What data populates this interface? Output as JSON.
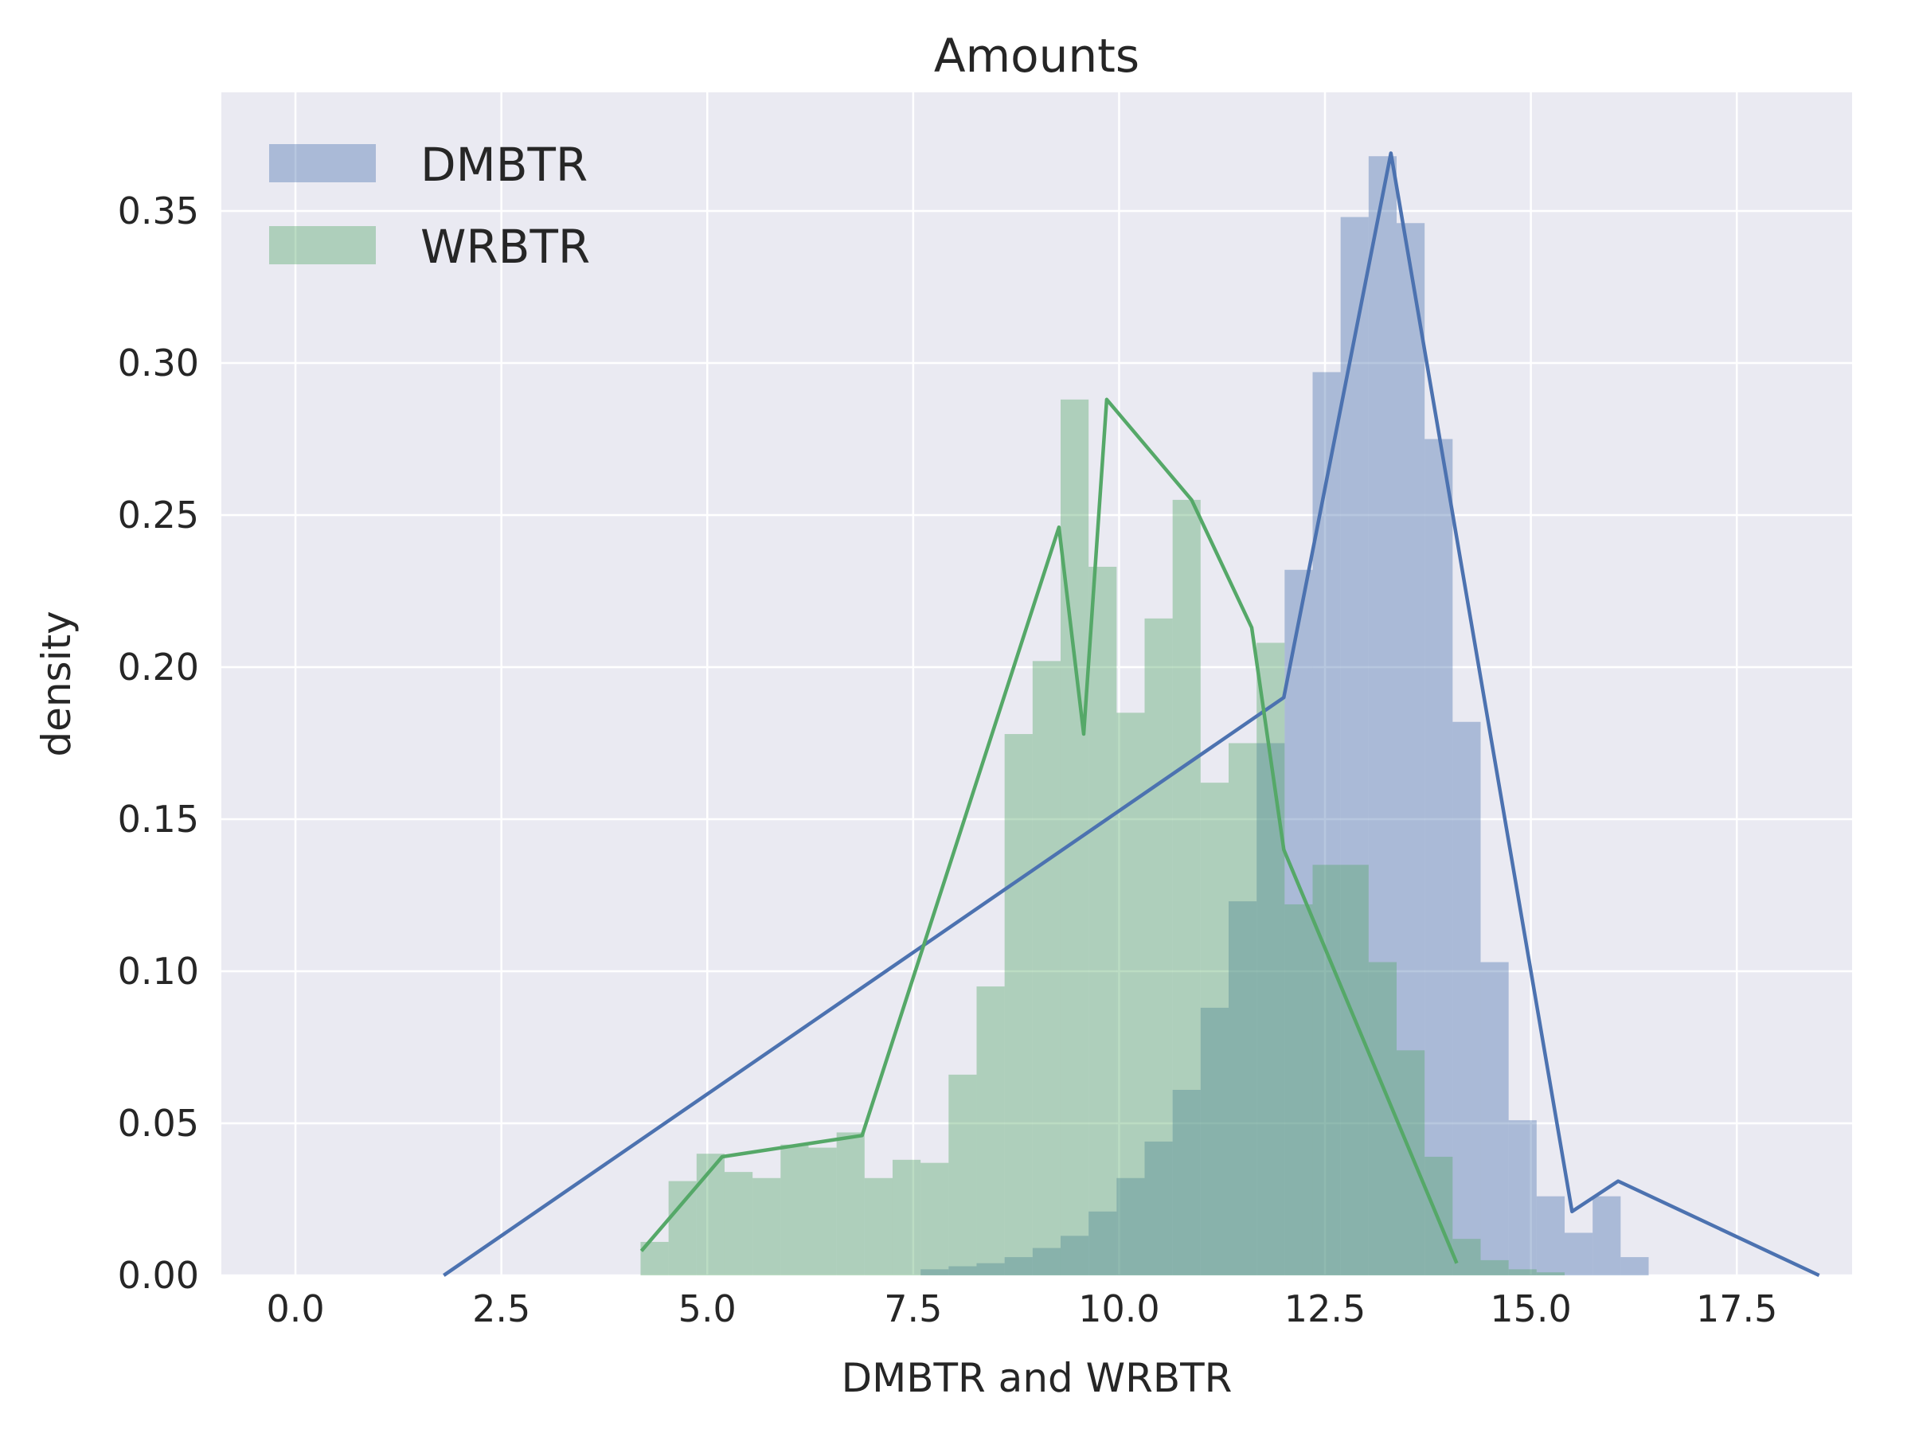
{
  "chart_data": {
    "type": "histogram",
    "title": "Amounts",
    "xlabel": "DMBTR and WRBTR",
    "ylabel": "density",
    "xlim": [
      -0.9,
      18.9
    ],
    "ylim": [
      0,
      0.389
    ],
    "xticks": [
      0.0,
      2.5,
      5.0,
      7.5,
      10.0,
      12.5,
      15.0,
      17.5
    ],
    "xtick_labels": [
      "0.0",
      "2.5",
      "5.0",
      "7.5",
      "10.0",
      "12.5",
      "15.0",
      "17.5"
    ],
    "yticks": [
      0.0,
      0.05,
      0.1,
      0.15,
      0.2,
      0.25,
      0.3,
      0.35
    ],
    "ytick_labels": [
      "0.00",
      "0.05",
      "0.10",
      "0.15",
      "0.20",
      "0.25",
      "0.30",
      "0.35"
    ],
    "grid": true,
    "legend_position": "top-left",
    "bin_edges": [
      4.19,
      4.53,
      4.87,
      5.21,
      5.55,
      5.89,
      6.23,
      6.57,
      6.91,
      7.25,
      7.59,
      7.93,
      8.27,
      8.61,
      8.95,
      9.29,
      9.63,
      9.97,
      10.31,
      10.65,
      10.99,
      11.33,
      11.67,
      12.01,
      12.35,
      12.69,
      13.03,
      13.37,
      13.71,
      14.05,
      14.39,
      14.73,
      15.07,
      15.41,
      15.75,
      16.09,
      16.43
    ],
    "series": [
      {
        "name": "DMBTR",
        "color": "#4c72b0",
        "hist_values": [
          0,
          0,
          0,
          0,
          0,
          0,
          0,
          0,
          0,
          0,
          0.002,
          0.003,
          0.004,
          0.006,
          0.009,
          0.013,
          0.021,
          0.032,
          0.044,
          0.061,
          0.088,
          0.123,
          0.175,
          0.232,
          0.297,
          0.348,
          0.368,
          0.346,
          0.275,
          0.182,
          0.103,
          0.051,
          0.026,
          0.014,
          0.026,
          0.006
        ],
        "kde_x": [
          13.3,
          12.0,
          15.5,
          1.8,
          16.06,
          18.5
        ],
        "kde_y": [
          0.369,
          0.19,
          0.021,
          0.0,
          0.031,
          0.0
        ]
      },
      {
        "name": "WRBTR",
        "color": "#55a868",
        "hist_values": [
          0.011,
          0.031,
          0.04,
          0.034,
          0.032,
          0.043,
          0.042,
          0.047,
          0.032,
          0.038,
          0.037,
          0.066,
          0.095,
          0.178,
          0.202,
          0.288,
          0.233,
          0.185,
          0.216,
          0.255,
          0.162,
          0.175,
          0.208,
          0.122,
          0.135,
          0.135,
          0.103,
          0.074,
          0.039,
          0.012,
          0.005,
          0.002,
          0.001,
          0,
          0,
          0
        ],
        "kde_x": [
          9.85,
          9.27,
          9.57,
          10.88,
          11.61,
          5.18,
          6.88,
          4.2,
          14.1,
          12.0
        ],
        "kde_y": [
          0.288,
          0.246,
          0.178,
          0.255,
          0.213,
          0.039,
          0.046,
          0.008,
          0.004,
          0.14
        ]
      }
    ]
  }
}
